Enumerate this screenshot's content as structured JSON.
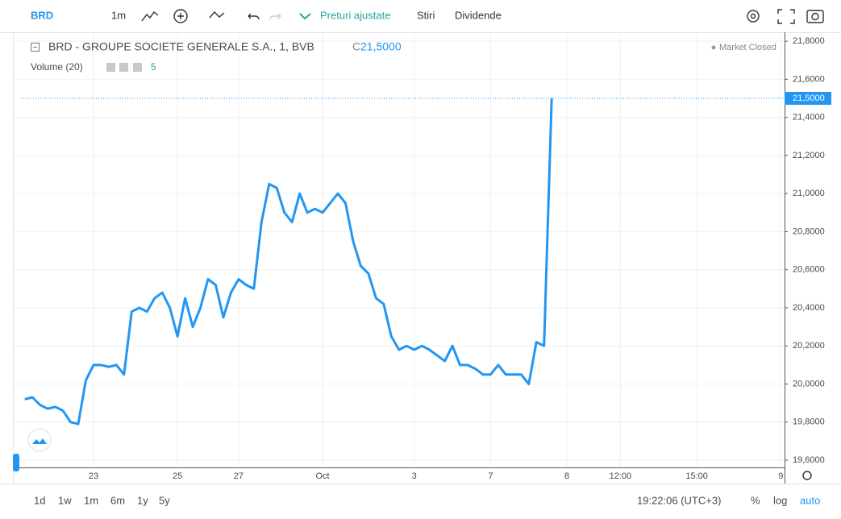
{
  "toolbar": {
    "symbol": "BRD",
    "interval": "1m",
    "adjusted": "Preturi ajustate",
    "news": "Stiri",
    "dividends": "Dividende"
  },
  "footer": {
    "ranges": [
      "1d",
      "1w",
      "1m",
      "6m",
      "1y",
      "5y"
    ],
    "time": "19:22:06 (UTC+3)",
    "percent": "%",
    "log": "log",
    "auto": "auto"
  },
  "legend": {
    "name": "BRD - GROUPE SOCIETE GENERALE S.A., 1, BVB",
    "price_label": "C",
    "price": "21,5000",
    "volume": "Volume (20)",
    "volume_value": "5",
    "status": "Market Closed"
  },
  "chart_data": {
    "type": "line",
    "categories": [
      null,
      null,
      null,
      null,
      null,
      null,
      null,
      null,
      null,
      "23",
      null,
      null,
      null,
      null,
      null,
      null,
      null,
      null,
      null,
      null,
      "25",
      null,
      null,
      null,
      null,
      null,
      null,
      null,
      "27",
      null,
      null,
      null,
      null,
      null,
      null,
      null,
      null,
      null,
      null,
      "Oct",
      null,
      null,
      null,
      null,
      null,
      null,
      null,
      null,
      null,
      null,
      null,
      "3",
      null,
      null,
      null,
      null,
      null,
      null,
      null,
      null,
      null,
      "7",
      null,
      null,
      null,
      null,
      null,
      null,
      null,
      null,
      null,
      "8",
      null,
      null,
      null,
      null,
      null,
      null,
      "12:00",
      null,
      null,
      null,
      null,
      null,
      null,
      null,
      null,
      null,
      "15:00",
      null,
      null,
      null,
      null,
      null,
      null,
      null,
      null,
      null,
      null,
      "9"
    ],
    "series": [
      {
        "name": "BRD",
        "color": "#2196f3",
        "values": [
          19.92,
          19.93,
          19.89,
          19.87,
          19.88,
          19.86,
          19.8,
          19.79,
          20.02,
          20.1,
          20.1,
          20.09,
          20.1,
          20.05,
          20.38,
          20.4,
          20.38,
          20.45,
          20.48,
          20.4,
          20.25,
          20.45,
          20.3,
          20.4,
          20.55,
          20.52,
          20.35,
          20.48,
          20.55,
          20.52,
          20.5,
          20.85,
          21.05,
          21.03,
          20.9,
          20.85,
          21.0,
          20.9,
          20.92,
          20.9,
          20.95,
          21.0,
          20.95,
          20.75,
          20.62,
          20.58,
          20.45,
          20.42,
          20.25,
          20.18,
          20.2,
          20.18,
          20.2,
          20.18,
          20.15,
          20.12,
          20.2,
          20.1,
          20.1,
          20.08,
          20.05,
          20.05,
          20.1,
          20.05,
          20.05,
          20.05,
          20.0,
          20.22,
          20.2,
          21.5,
          null,
          null,
          null,
          null,
          null,
          null,
          null,
          null,
          null,
          null,
          null,
          null,
          null,
          null,
          null,
          null,
          null,
          null,
          null,
          null,
          null,
          null,
          null,
          null,
          null,
          null,
          null,
          null,
          null,
          null
        ]
      }
    ],
    "ylim": [
      19.562,
      21.847
    ],
    "yticks": [
      {
        "value": 19.6,
        "label": "19,6000"
      },
      {
        "value": 19.8,
        "label": "19,8000"
      },
      {
        "value": 20.0,
        "label": "20,0000"
      },
      {
        "value": 20.2,
        "label": "20,2000"
      },
      {
        "value": 20.4,
        "label": "20,4000"
      },
      {
        "value": 20.6,
        "label": "20,6000"
      },
      {
        "value": 20.8,
        "label": "20,8000"
      },
      {
        "value": 21.0,
        "label": "21,0000"
      },
      {
        "value": 21.2,
        "label": "21,2000"
      },
      {
        "value": 21.4,
        "label": "21,4000"
      },
      {
        "value": 21.6,
        "label": "21,6000"
      },
      {
        "value": 21.8,
        "label": "21,8000"
      }
    ],
    "last_price": {
      "value": 21.5,
      "label": "21,5000"
    },
    "grid": true
  }
}
